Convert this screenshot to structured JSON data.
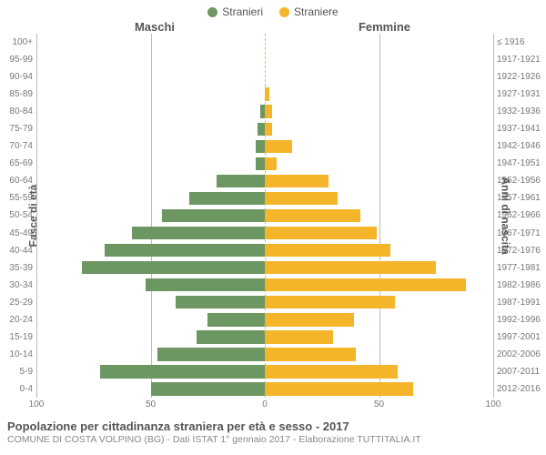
{
  "chart": {
    "type": "population-pyramid",
    "legend": [
      {
        "label": "Stranieri",
        "color": "#6d9762"
      },
      {
        "label": "Straniere",
        "color": "#f5b52a"
      }
    ],
    "header_left": "Maschi",
    "header_right": "Femmine",
    "axis_left_label": "Fasce di età",
    "axis_right_label": "Anni di nascita",
    "xmax": 100,
    "xticks": [
      100,
      50,
      0,
      50,
      100
    ],
    "xtick_labels": [
      "100",
      "50",
      "0",
      "50",
      "100"
    ],
    "colors": {
      "male": "#6d9762",
      "female": "#f5b52a",
      "grid": "#bbbbbb",
      "center_dash": "#f5b52a",
      "bg": "#ffffff",
      "text": "#555555",
      "tick_text": "#777777"
    },
    "bar_height_ratio": 0.76,
    "font": {
      "tick_size": 10,
      "label_size": 12,
      "header_size": 13,
      "title_size": 13,
      "subtitle_size": 10.5,
      "family": "Arial"
    },
    "rows": [
      {
        "age": "100+",
        "year": "≤ 1916",
        "m": 0,
        "f": 0
      },
      {
        "age": "95-99",
        "year": "1917-1921",
        "m": 0,
        "f": 0
      },
      {
        "age": "90-94",
        "year": "1922-1926",
        "m": 0,
        "f": 0
      },
      {
        "age": "85-89",
        "year": "1927-1931",
        "m": 0,
        "f": 2
      },
      {
        "age": "80-84",
        "year": "1932-1936",
        "m": 2,
        "f": 3
      },
      {
        "age": "75-79",
        "year": "1937-1941",
        "m": 3,
        "f": 3
      },
      {
        "age": "70-74",
        "year": "1942-1946",
        "m": 4,
        "f": 12
      },
      {
        "age": "65-69",
        "year": "1947-1951",
        "m": 4,
        "f": 5
      },
      {
        "age": "60-64",
        "year": "1952-1956",
        "m": 21,
        "f": 28
      },
      {
        "age": "55-59",
        "year": "1957-1961",
        "m": 33,
        "f": 32
      },
      {
        "age": "50-54",
        "year": "1962-1966",
        "m": 45,
        "f": 42
      },
      {
        "age": "45-49",
        "year": "1967-1971",
        "m": 58,
        "f": 49
      },
      {
        "age": "40-44",
        "year": "1972-1976",
        "m": 70,
        "f": 55
      },
      {
        "age": "35-39",
        "year": "1977-1981",
        "m": 80,
        "f": 75
      },
      {
        "age": "30-34",
        "year": "1982-1986",
        "m": 52,
        "f": 88
      },
      {
        "age": "25-29",
        "year": "1987-1991",
        "m": 39,
        "f": 57
      },
      {
        "age": "20-24",
        "year": "1992-1996",
        "m": 25,
        "f": 39
      },
      {
        "age": "15-19",
        "year": "1997-2001",
        "m": 30,
        "f": 30
      },
      {
        "age": "10-14",
        "year": "2002-2006",
        "m": 47,
        "f": 40
      },
      {
        "age": "5-9",
        "year": "2007-2011",
        "m": 72,
        "f": 58
      },
      {
        "age": "0-4",
        "year": "2012-2016",
        "m": 50,
        "f": 65
      }
    ]
  },
  "footer": {
    "title": "Popolazione per cittadinanza straniera per età e sesso - 2017",
    "subtitle": "COMUNE DI COSTA VOLPINO (BG) - Dati ISTAT 1° gennaio 2017 - Elaborazione TUTTITALIA.IT"
  }
}
